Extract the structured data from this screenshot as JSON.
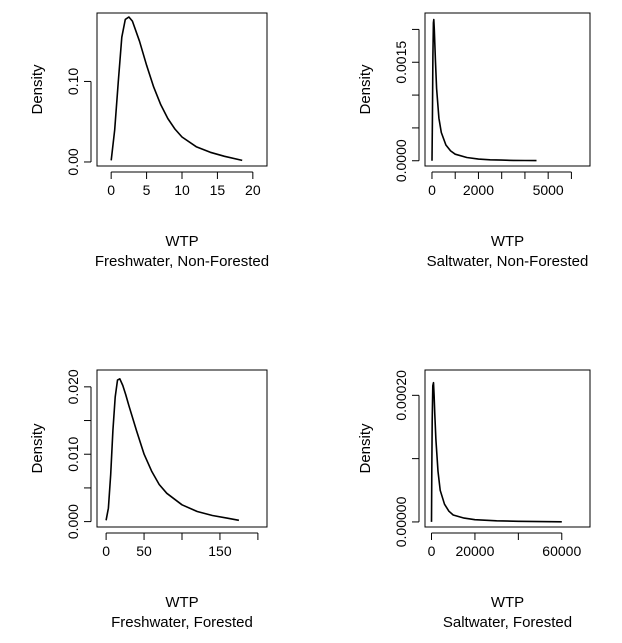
{
  "chart_data": [
    {
      "type": "line",
      "xlabel": "WTP",
      "subtitle": "Freshwater, Non-Forested",
      "ylabel": "Density",
      "xlim": [
        -2,
        22
      ],
      "ylim": [
        -0.005,
        0.185
      ],
      "xticks": [
        0,
        5,
        10,
        15,
        20
      ],
      "xtick_labels": [
        "0",
        "5",
        "10",
        "15",
        "20"
      ],
      "yticks": [
        0.0,
        0.1
      ],
      "ytick_labels": [
        "0.00",
        "0.10"
      ],
      "grid": false,
      "series": [
        {
          "x": [
            0.0,
            0.5,
            1.0,
            1.5,
            2.0,
            2.5,
            3.0,
            4.0,
            5.0,
            6.0,
            7.0,
            8.0,
            9.0,
            10.0,
            12.0,
            14.0,
            16.0,
            18.5
          ],
          "values": [
            0.002,
            0.04,
            0.1,
            0.155,
            0.177,
            0.18,
            0.175,
            0.15,
            0.12,
            0.093,
            0.071,
            0.054,
            0.041,
            0.031,
            0.019,
            0.012,
            0.007,
            0.002
          ]
        }
      ]
    },
    {
      "type": "line",
      "xlabel": "WTP",
      "subtitle": "Saltwater, Non-Forested",
      "ylabel": "Density",
      "xlim": [
        -300,
        6800
      ],
      "ylim": [
        -8e-05,
        0.00225
      ],
      "xticks": [
        0,
        1000,
        2000,
        3000,
        4000,
        5000,
        6000
      ],
      "xtick_labels": [
        "0",
        "",
        "2000",
        "",
        "",
        "5000",
        ""
      ],
      "yticks": [
        0.0,
        0.0005,
        0.001,
        0.0015,
        0.002
      ],
      "ytick_labels": [
        "0.0000",
        "",
        "",
        "0.0015",
        ""
      ],
      "grid": false,
      "series": [
        {
          "x": [
            0,
            20,
            40,
            60,
            80,
            100,
            150,
            200,
            300,
            400,
            600,
            800,
            1000,
            1500,
            2000,
            2500,
            3000,
            3500,
            4000,
            4500
          ],
          "values": [
            0.0,
            0.0006,
            0.0016,
            0.0021,
            0.00215,
            0.002,
            0.0015,
            0.0011,
            0.00065,
            0.00043,
            0.00024,
            0.00015,
            0.0001,
            5e-05,
            2.5e-05,
            1.5e-05,
            1e-05,
            6e-06,
            4e-06,
            2e-06
          ]
        }
      ]
    },
    {
      "type": "line",
      "xlabel": "WTP",
      "subtitle": "Freshwater, Forested",
      "ylabel": "Density",
      "xlim": [
        -12,
        212
      ],
      "ylim": [
        -0.0008,
        0.0225
      ],
      "xticks": [
        0,
        50,
        100,
        150,
        200
      ],
      "xtick_labels": [
        "0",
        "50",
        "",
        "150",
        ""
      ],
      "yticks": [
        0.0,
        0.005,
        0.01,
        0.015,
        0.02
      ],
      "ytick_labels": [
        "0.000",
        "",
        "0.010",
        "",
        "0.020"
      ],
      "grid": false,
      "series": [
        {
          "x": [
            0,
            3,
            6,
            9,
            12,
            15,
            18,
            22,
            26,
            30,
            40,
            50,
            60,
            70,
            80,
            100,
            120,
            140,
            160,
            175
          ],
          "values": [
            0.0002,
            0.002,
            0.007,
            0.0135,
            0.0185,
            0.021,
            0.0212,
            0.0202,
            0.0188,
            0.0172,
            0.0135,
            0.01,
            0.0075,
            0.0055,
            0.0042,
            0.0025,
            0.0015,
            0.0009,
            0.0005,
            0.0002
          ]
        }
      ]
    },
    {
      "type": "line",
      "xlabel": "WTP",
      "subtitle": "Saltwater, Forested",
      "ylabel": "Density",
      "xlim": [
        -3000,
        73000
      ],
      "ylim": [
        -8e-06,
        0.00024
      ],
      "xticks": [
        0,
        20000,
        40000,
        60000
      ],
      "xtick_labels": [
        "0",
        "20000",
        "",
        "60000"
      ],
      "yticks": [
        0.0,
        0.0001,
        0.0002
      ],
      "ytick_labels": [
        "0.00000",
        "",
        "0.00020"
      ],
      "grid": false,
      "series": [
        {
          "x": [
            0,
            150,
            300,
            600,
            900,
            1200,
            1500,
            2000,
            3000,
            4000,
            6000,
            8000,
            10000,
            15000,
            20000,
            30000,
            40000,
            50000,
            60000
          ],
          "values": [
            0.0,
            8e-05,
            0.00016,
            0.000215,
            0.00022,
            0.0002,
            0.00017,
            0.00013,
            8e-05,
            5e-05,
            2.8e-05,
            1.7e-05,
            1.1e-05,
            6e-06,
            3.5e-06,
            1.8e-06,
            1e-06,
            5e-07,
            2e-07
          ]
        }
      ]
    }
  ]
}
